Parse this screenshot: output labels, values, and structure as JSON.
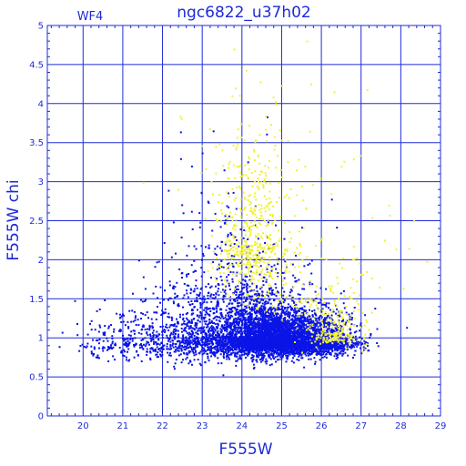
{
  "chart_data": {
    "type": "scatter",
    "title": "ngc6822_u37h02",
    "subtitle": "WF4",
    "xlabel": "F555W",
    "ylabel": "F555W  chi",
    "xlim": [
      19.1,
      29
    ],
    "ylim": [
      0,
      5
    ],
    "grid": true,
    "x_ticks": [
      "20",
      "21",
      "22",
      "23",
      "24",
      "25",
      "26",
      "27",
      "28",
      "29"
    ],
    "y_ticks": [
      "0",
      "0.5",
      "1",
      "1.5",
      "2",
      "2.5",
      "3",
      "3.5",
      "4",
      "4.5",
      "5"
    ],
    "series": [
      {
        "color": "#0a14e6",
        "regions": [
          {
            "cx": 24.7,
            "cy": 0.98,
            "sx": 0.55,
            "sy": 0.16,
            "n": 2600
          },
          {
            "cx": 25.8,
            "cy": 0.95,
            "sx": 0.55,
            "sy": 0.14,
            "n": 1500
          },
          {
            "cx": 23.9,
            "cy": 1.02,
            "sx": 0.65,
            "sy": 0.22,
            "n": 1100
          },
          {
            "cx": 22.6,
            "cy": 1.0,
            "sx": 0.55,
            "sy": 0.22,
            "n": 500
          },
          {
            "cx": 21.0,
            "cy": 0.92,
            "sx": 0.6,
            "sy": 0.16,
            "n": 220
          },
          {
            "cx": 24.0,
            "cy": 1.7,
            "sx": 1.0,
            "sy": 0.3,
            "n": 260
          },
          {
            "cx": 23.2,
            "cy": 2.3,
            "sx": 0.8,
            "sy": 0.45,
            "n": 60
          }
        ]
      },
      {
        "color": "#f2f233",
        "regions": [
          {
            "cx": 24.3,
            "cy": 2.2,
            "sx": 0.45,
            "sy": 0.45,
            "n": 520
          },
          {
            "cx": 26.3,
            "cy": 1.05,
            "sx": 0.35,
            "sy": 0.15,
            "n": 200
          },
          {
            "cx": 25.5,
            "cy": 1.55,
            "sx": 0.8,
            "sy": 0.25,
            "n": 100
          },
          {
            "cx": 24.5,
            "cy": 3.3,
            "sx": 1.2,
            "sy": 0.6,
            "n": 60
          },
          {
            "cx": 27.3,
            "cy": 1.8,
            "sx": 1.0,
            "sy": 0.4,
            "n": 30
          }
        ]
      }
    ]
  }
}
